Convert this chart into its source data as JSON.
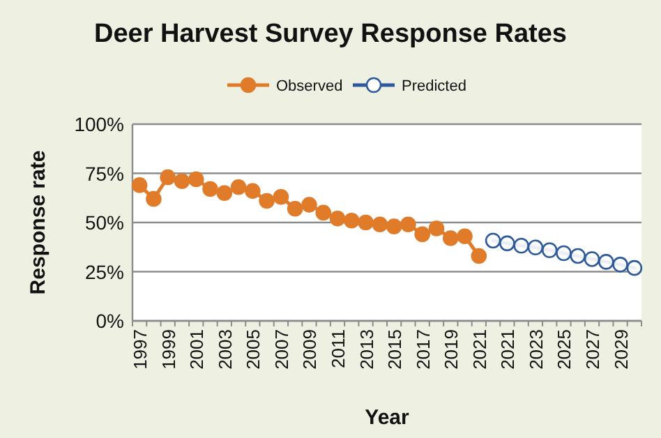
{
  "chart_data": {
    "type": "line",
    "title": "Deer Harvest Survey Response Rates",
    "xlabel": "Year",
    "ylabel": "Response rate",
    "categories": [
      "1997",
      null,
      "1999",
      null,
      "2001",
      null,
      "2003",
      null,
      "2005",
      null,
      "2007",
      null,
      "2009",
      null,
      "2011",
      null,
      "2013",
      null,
      "2015",
      null,
      "2017",
      null,
      "2019",
      null,
      "2021",
      null,
      "2021",
      null,
      "2023",
      null,
      "2025",
      null,
      "2027",
      null,
      "2029",
      null
    ],
    "series": [
      {
        "name": "Observed",
        "color": "#e07b2a",
        "marker": "circle",
        "values": [
          69,
          62,
          73,
          71,
          72,
          67,
          65,
          68,
          66,
          61,
          63,
          57,
          59,
          55,
          52,
          51,
          50,
          49,
          48,
          49,
          44,
          47,
          42,
          43,
          33,
          null,
          null,
          null,
          null,
          null,
          null,
          null,
          null,
          null,
          null,
          null
        ]
      },
      {
        "name": "Predicted",
        "color": "#2e5a9c",
        "marker": "circle",
        "values": [
          null,
          null,
          null,
          null,
          null,
          null,
          null,
          null,
          null,
          null,
          null,
          null,
          null,
          null,
          null,
          null,
          null,
          null,
          null,
          null,
          null,
          null,
          null,
          null,
          null,
          40.8,
          39.4,
          38.2,
          37.3,
          35.9,
          34.4,
          33,
          31.4,
          30,
          28.6,
          26.9
        ]
      }
    ],
    "ylim": [
      0,
      100
    ],
    "yticks": [
      {
        "value": 0,
        "label": "0%"
      },
      {
        "value": 25,
        "label": "25%"
      },
      {
        "value": 50,
        "label": "50%"
      },
      {
        "value": 75,
        "label": "75%"
      },
      {
        "value": 100,
        "label": "100%"
      }
    ],
    "grid": "y",
    "legend": "top"
  }
}
